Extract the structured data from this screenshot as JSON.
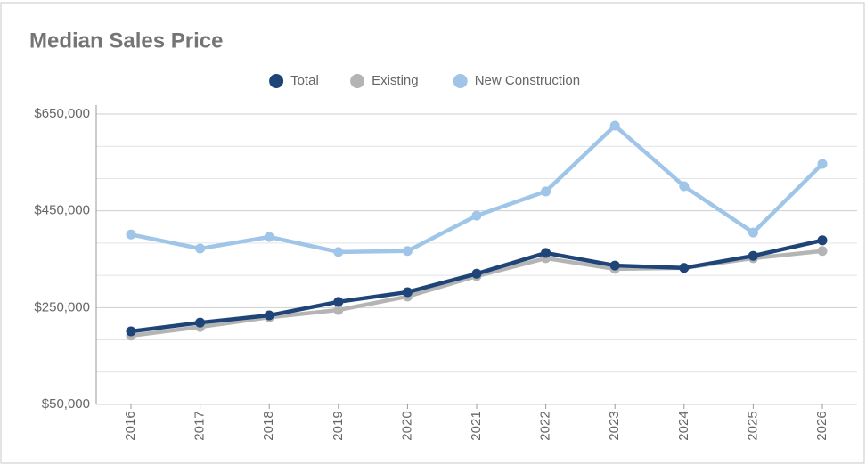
{
  "chart_data": {
    "type": "line",
    "title": "Median Sales Price",
    "categories": [
      "2016",
      "2017",
      "2018",
      "2019",
      "2020",
      "2021",
      "2022",
      "2023",
      "2024",
      "2025",
      "2026"
    ],
    "series": [
      {
        "name": "Total",
        "color": "#1f4478",
        "values": [
          201000,
          219000,
          234000,
          262000,
          282000,
          320000,
          363000,
          337000,
          332000,
          357000,
          389000
        ]
      },
      {
        "name": "Existing",
        "color": "#b4b4b4",
        "values": [
          192000,
          210000,
          230000,
          245000,
          273000,
          315000,
          352000,
          330000,
          332000,
          352000,
          367000
        ]
      },
      {
        "name": "New Construction",
        "color": "#9fc5e8",
        "values": [
          401000,
          372000,
          396000,
          365000,
          367000,
          440000,
          490000,
          626000,
          501000,
          405000,
          547000
        ]
      }
    ],
    "ylim": [
      50000,
      650000
    ],
    "yticks": [
      {
        "value": 50000,
        "label": "$50,000"
      },
      {
        "value": 250000,
        "label": "$250,000"
      },
      {
        "value": 450000,
        "label": "$450,000"
      },
      {
        "value": 650000,
        "label": "$650,000"
      }
    ],
    "ygrid_minor": [
      116667,
      183333,
      316667,
      383333,
      516667,
      583333
    ],
    "grid": true,
    "legend": "top"
  }
}
